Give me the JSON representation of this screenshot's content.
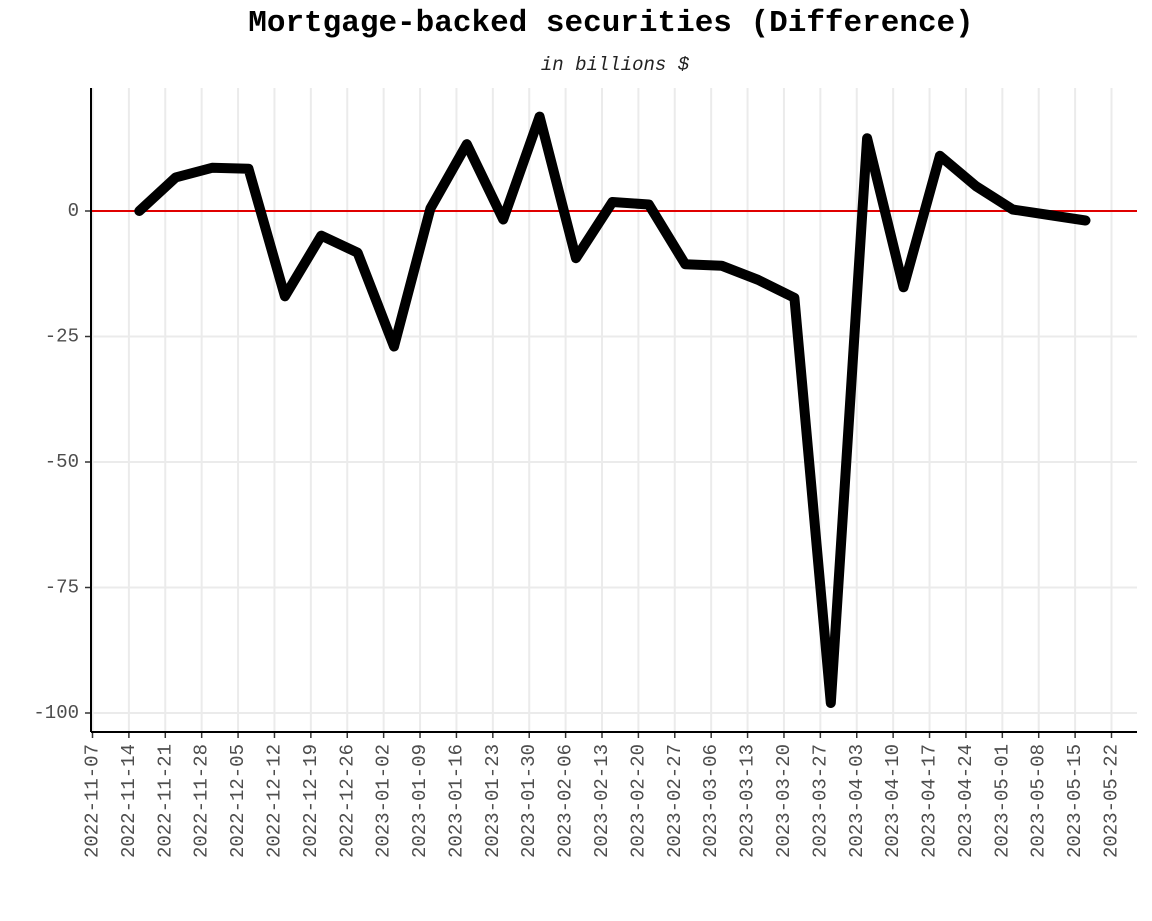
{
  "chart_data": {
    "type": "line",
    "title": "Mortgage-backed securities (Difference)",
    "subtitle": "in billions $",
    "xlabel": "",
    "ylabel": "",
    "x_ticks": [
      "2022-11-07",
      "2022-11-14",
      "2022-11-21",
      "2022-11-28",
      "2022-12-05",
      "2022-12-12",
      "2022-12-19",
      "2022-12-26",
      "2023-01-02",
      "2023-01-09",
      "2023-01-16",
      "2023-01-23",
      "2023-01-30",
      "2023-02-06",
      "2023-02-13",
      "2023-02-20",
      "2023-02-27",
      "2023-03-06",
      "2023-03-13",
      "2023-03-20",
      "2023-03-27",
      "2023-04-03",
      "2023-04-10",
      "2023-04-17",
      "2023-04-24",
      "2023-05-01",
      "2023-05-08",
      "2023-05-15",
      "2023-05-22"
    ],
    "y_ticks": [
      0,
      -25,
      -50,
      -75,
      -100
    ],
    "ylim": [
      -104,
      24
    ],
    "grid": true,
    "reference_line": {
      "y": 0,
      "color": "#e00000"
    },
    "line_color": "#000000",
    "series": [
      {
        "x": [
          "2022-11-16",
          "2022-11-23",
          "2022-11-30",
          "2022-12-07",
          "2022-12-14",
          "2022-12-21",
          "2022-12-28",
          "2023-01-04",
          "2023-01-11",
          "2023-01-18",
          "2023-01-25",
          "2023-02-01",
          "2023-02-08",
          "2023-02-15",
          "2023-02-22",
          "2023-03-01",
          "2023-03-08",
          "2023-03-15",
          "2023-03-22",
          "2023-03-29",
          "2023-04-05",
          "2023-04-12",
          "2023-04-19",
          "2023-04-26",
          "2023-05-03",
          "2023-05-10",
          "2023-05-17"
        ],
        "values": [
          0,
          6.7,
          8.6,
          8.4,
          -17,
          -4.9,
          -8.3,
          -27,
          0.5,
          13.3,
          -1.7,
          18.8,
          -9.4,
          1.8,
          1.3,
          -10.6,
          -10.9,
          -13.7,
          -17.3,
          -98,
          14.5,
          -15.2,
          11,
          4.9,
          0.3,
          -0.8,
          -1.9
        ]
      }
    ]
  }
}
